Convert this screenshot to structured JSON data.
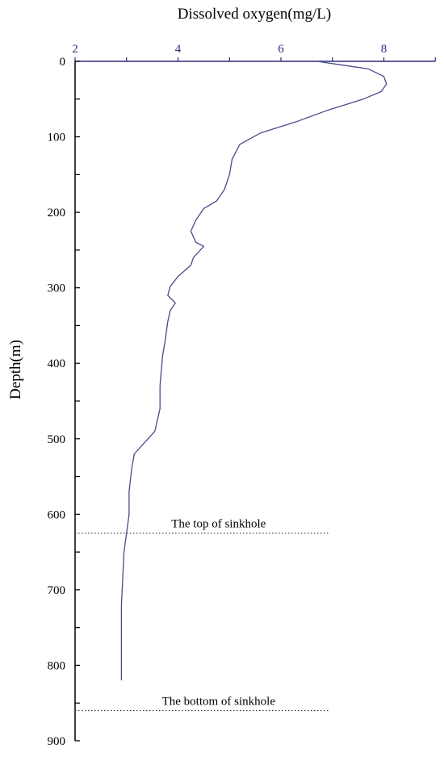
{
  "chart_data": {
    "type": "line",
    "title": "",
    "xlabel": "Dissolved oxygen(mg/L)",
    "ylabel": "Depth(m)",
    "xlim": [
      2,
      9
    ],
    "ylim": [
      0,
      900
    ],
    "y_inverted": true,
    "x_axis_position": "top",
    "x_ticks": [
      2,
      4,
      6,
      8
    ],
    "x_tick_labels": [
      "2",
      "4",
      "6",
      "8"
    ],
    "y_ticks": [
      0,
      100,
      200,
      300,
      400,
      500,
      600,
      700,
      800,
      900
    ],
    "y_tick_labels": [
      "0",
      "100",
      "200",
      "300",
      "400",
      "500",
      "600",
      "700",
      "800",
      "900"
    ],
    "grid": false,
    "colors": {
      "line": "#4a4a8c",
      "x_axis": "#2b2b7a",
      "y_axis": "#000000",
      "annotation_line": "#333333"
    },
    "series": [
      {
        "x": [
          6.7,
          7.2,
          7.7,
          8.0,
          8.05,
          7.95,
          7.6,
          6.9,
          6.3,
          5.6,
          5.2,
          5.05,
          5.0,
          4.9,
          4.75,
          4.5,
          4.35,
          4.25,
          4.35,
          4.5,
          4.3,
          4.25,
          4.0,
          3.85,
          3.8,
          3.95,
          3.85,
          3.8,
          3.75,
          3.7,
          3.65,
          3.65,
          3.55,
          3.35,
          3.15,
          3.1,
          3.05,
          3.05,
          2.95,
          2.9,
          2.9
        ],
        "y": [
          0,
          5,
          10,
          20,
          30,
          40,
          50,
          65,
          80,
          95,
          110,
          130,
          150,
          170,
          185,
          195,
          210,
          225,
          240,
          245,
          260,
          270,
          285,
          298,
          310,
          320,
          330,
          345,
          370,
          390,
          430,
          460,
          490,
          505,
          520,
          540,
          570,
          600,
          650,
          720,
          820
        ]
      }
    ],
    "annotations": [
      {
        "text": "The top of sinkhole",
        "depth": 625,
        "x_start": 2.0,
        "x_end": 6.95
      },
      {
        "text": "The bottom of sinkhole",
        "depth": 860,
        "x_start": 2.0,
        "x_end": 6.95
      }
    ]
  }
}
